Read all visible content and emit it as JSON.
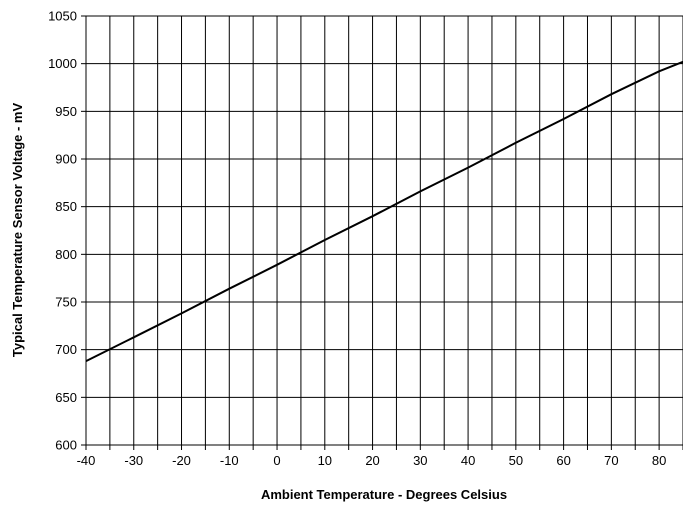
{
  "chart_data": {
    "type": "line",
    "xlabel": "Ambient Temperature - Degrees Celsius",
    "ylabel": "Typical Temperature Sensor Voltage - mV",
    "xlim": [
      -40,
      85
    ],
    "ylim": [
      600,
      1050
    ],
    "x_ticks": [
      "-40",
      "-30",
      "-20",
      "-10",
      "0",
      "10",
      "20",
      "30",
      "40",
      "50",
      "60",
      "70",
      "80"
    ],
    "y_ticks": [
      "600",
      "650",
      "700",
      "750",
      "800",
      "850",
      "900",
      "950",
      "1000",
      "1050"
    ],
    "grid_x_step": 5,
    "grid": true,
    "series": [
      {
        "x": [
          -40,
          -30,
          -20,
          -10,
          0,
          10,
          20,
          30,
          40,
          50,
          60,
          70,
          80,
          85
        ],
        "y": [
          688,
          713,
          738,
          764,
          789,
          815,
          840,
          866,
          891,
          917,
          942,
          968,
          992,
          1002
        ]
      }
    ],
    "line_color": "#000000"
  }
}
